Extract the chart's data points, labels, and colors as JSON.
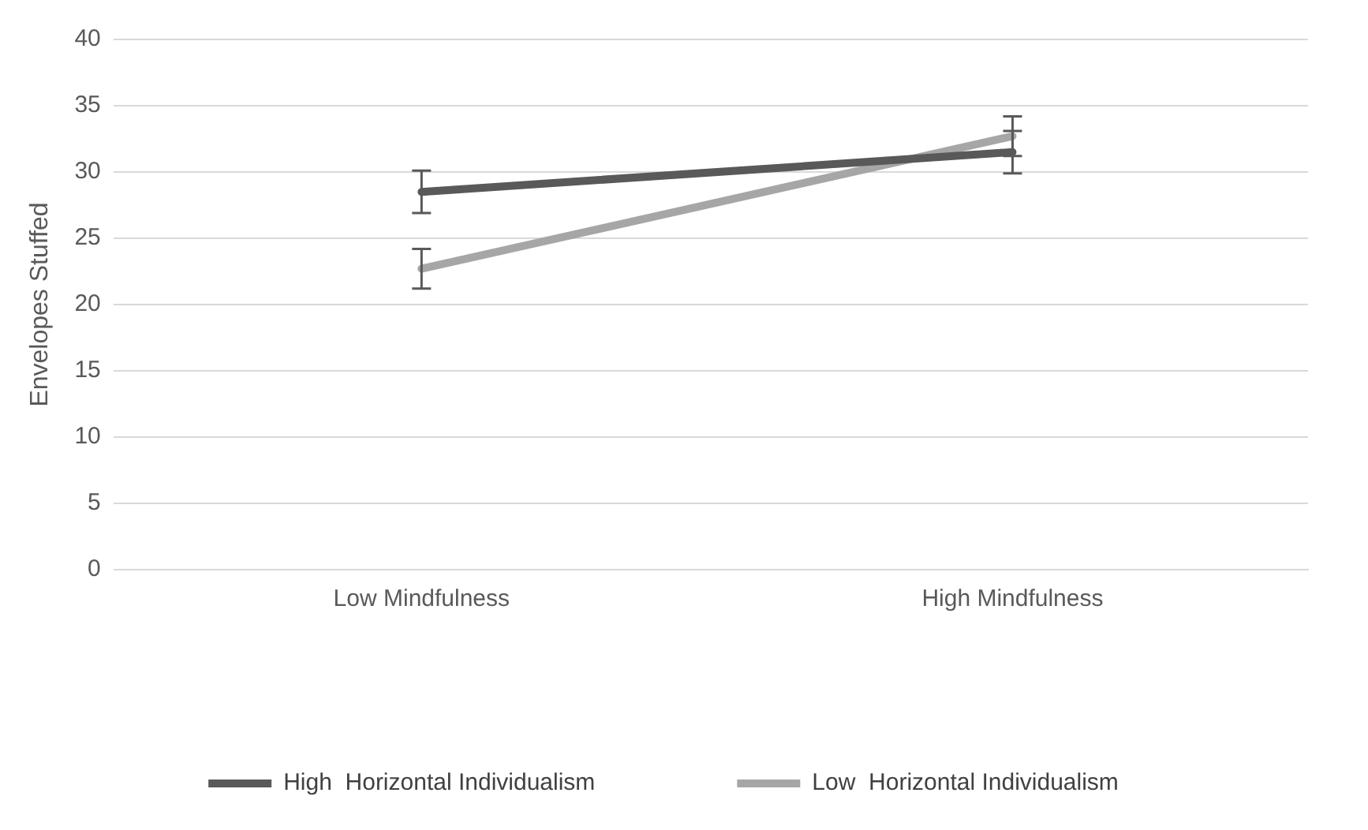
{
  "chart_data": {
    "type": "line",
    "ylabel": "Envelopes Stuffed",
    "categories": [
      "Low Mindfulness",
      "High Mindfulness"
    ],
    "series": [
      {
        "name": "High  Horizontal Individualism",
        "color": "#595959",
        "values": [
          28.5,
          31.5
        ],
        "errors": [
          1.6,
          1.6
        ]
      },
      {
        "name": "Low  Horizontal Individualism",
        "color": "#a6a6a6",
        "values": [
          22.7,
          32.7
        ],
        "errors": [
          1.5,
          1.5
        ]
      }
    ],
    "ylim": [
      0,
      40
    ],
    "yticks": [
      0,
      5,
      10,
      15,
      20,
      25,
      30,
      35,
      40
    ],
    "grid": "y",
    "legend": "bottom",
    "marker": "none",
    "line_style": "solid"
  }
}
